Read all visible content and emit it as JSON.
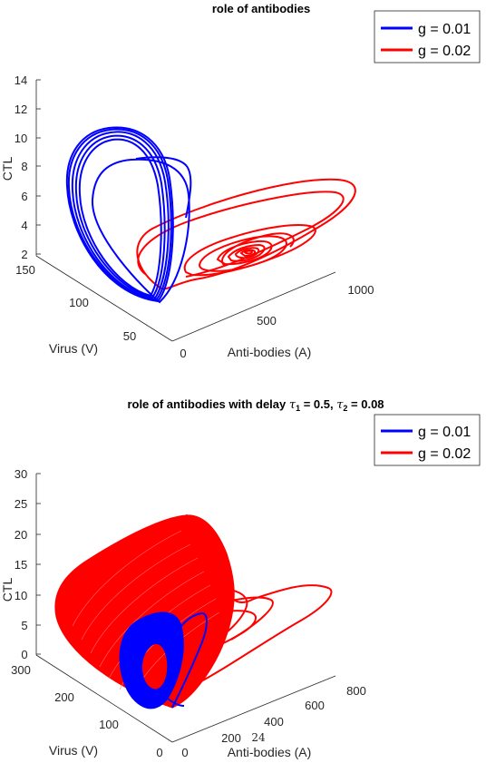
{
  "chart_data": [
    {
      "type": "line",
      "title": "role of antibodies",
      "xlabel": "Anti-bodies (A)",
      "ylabel": "Virus (V)",
      "zlabel": "CTL",
      "xticks": [
        "0",
        "500",
        "1000"
      ],
      "yticks": [
        "50",
        "100",
        "150"
      ],
      "zticks": [
        "2",
        "4",
        "6",
        "8",
        "10",
        "12",
        "14"
      ],
      "zlim": [
        2,
        14
      ],
      "legend_position": "top-right",
      "series": [
        {
          "name": "g = 0.01",
          "color": "#0000ff",
          "shape": "thick limit-cycle loop near low anti-bodies"
        },
        {
          "name": "g = 0.02",
          "color": "#ff0000",
          "shape": "spiral converging near A≈750, CTL≈3"
        }
      ]
    },
    {
      "type": "line",
      "title_text": "role of antibodies with delay ",
      "title_tau1_symbol": "τ",
      "title_tau1_sub": "1",
      "title_tau1_val": " = 0.5, ",
      "title_tau2_symbol": "τ",
      "title_tau2_sub": "2",
      "title_tau2_val": " = 0.08",
      "xlabel": "Anti-bodies (A)",
      "ylabel": "Virus (V)",
      "zlabel": "CTL",
      "xticks": [
        "0",
        "200",
        "400",
        "600",
        "800"
      ],
      "yticks": [
        "0",
        "100",
        "200",
        "300"
      ],
      "zticks": [
        "0",
        "5",
        "10",
        "15",
        "20",
        "25",
        "30"
      ],
      "zlim": [
        0,
        30
      ],
      "stray_label": "24",
      "legend_position": "top-right",
      "series": [
        {
          "name": "g = 0.01",
          "color": "#0000ff",
          "shape": "dense loop bundle"
        },
        {
          "name": "g = 0.02",
          "color": "#ff0000",
          "shape": "large dense oscillation envelope"
        }
      ]
    }
  ]
}
